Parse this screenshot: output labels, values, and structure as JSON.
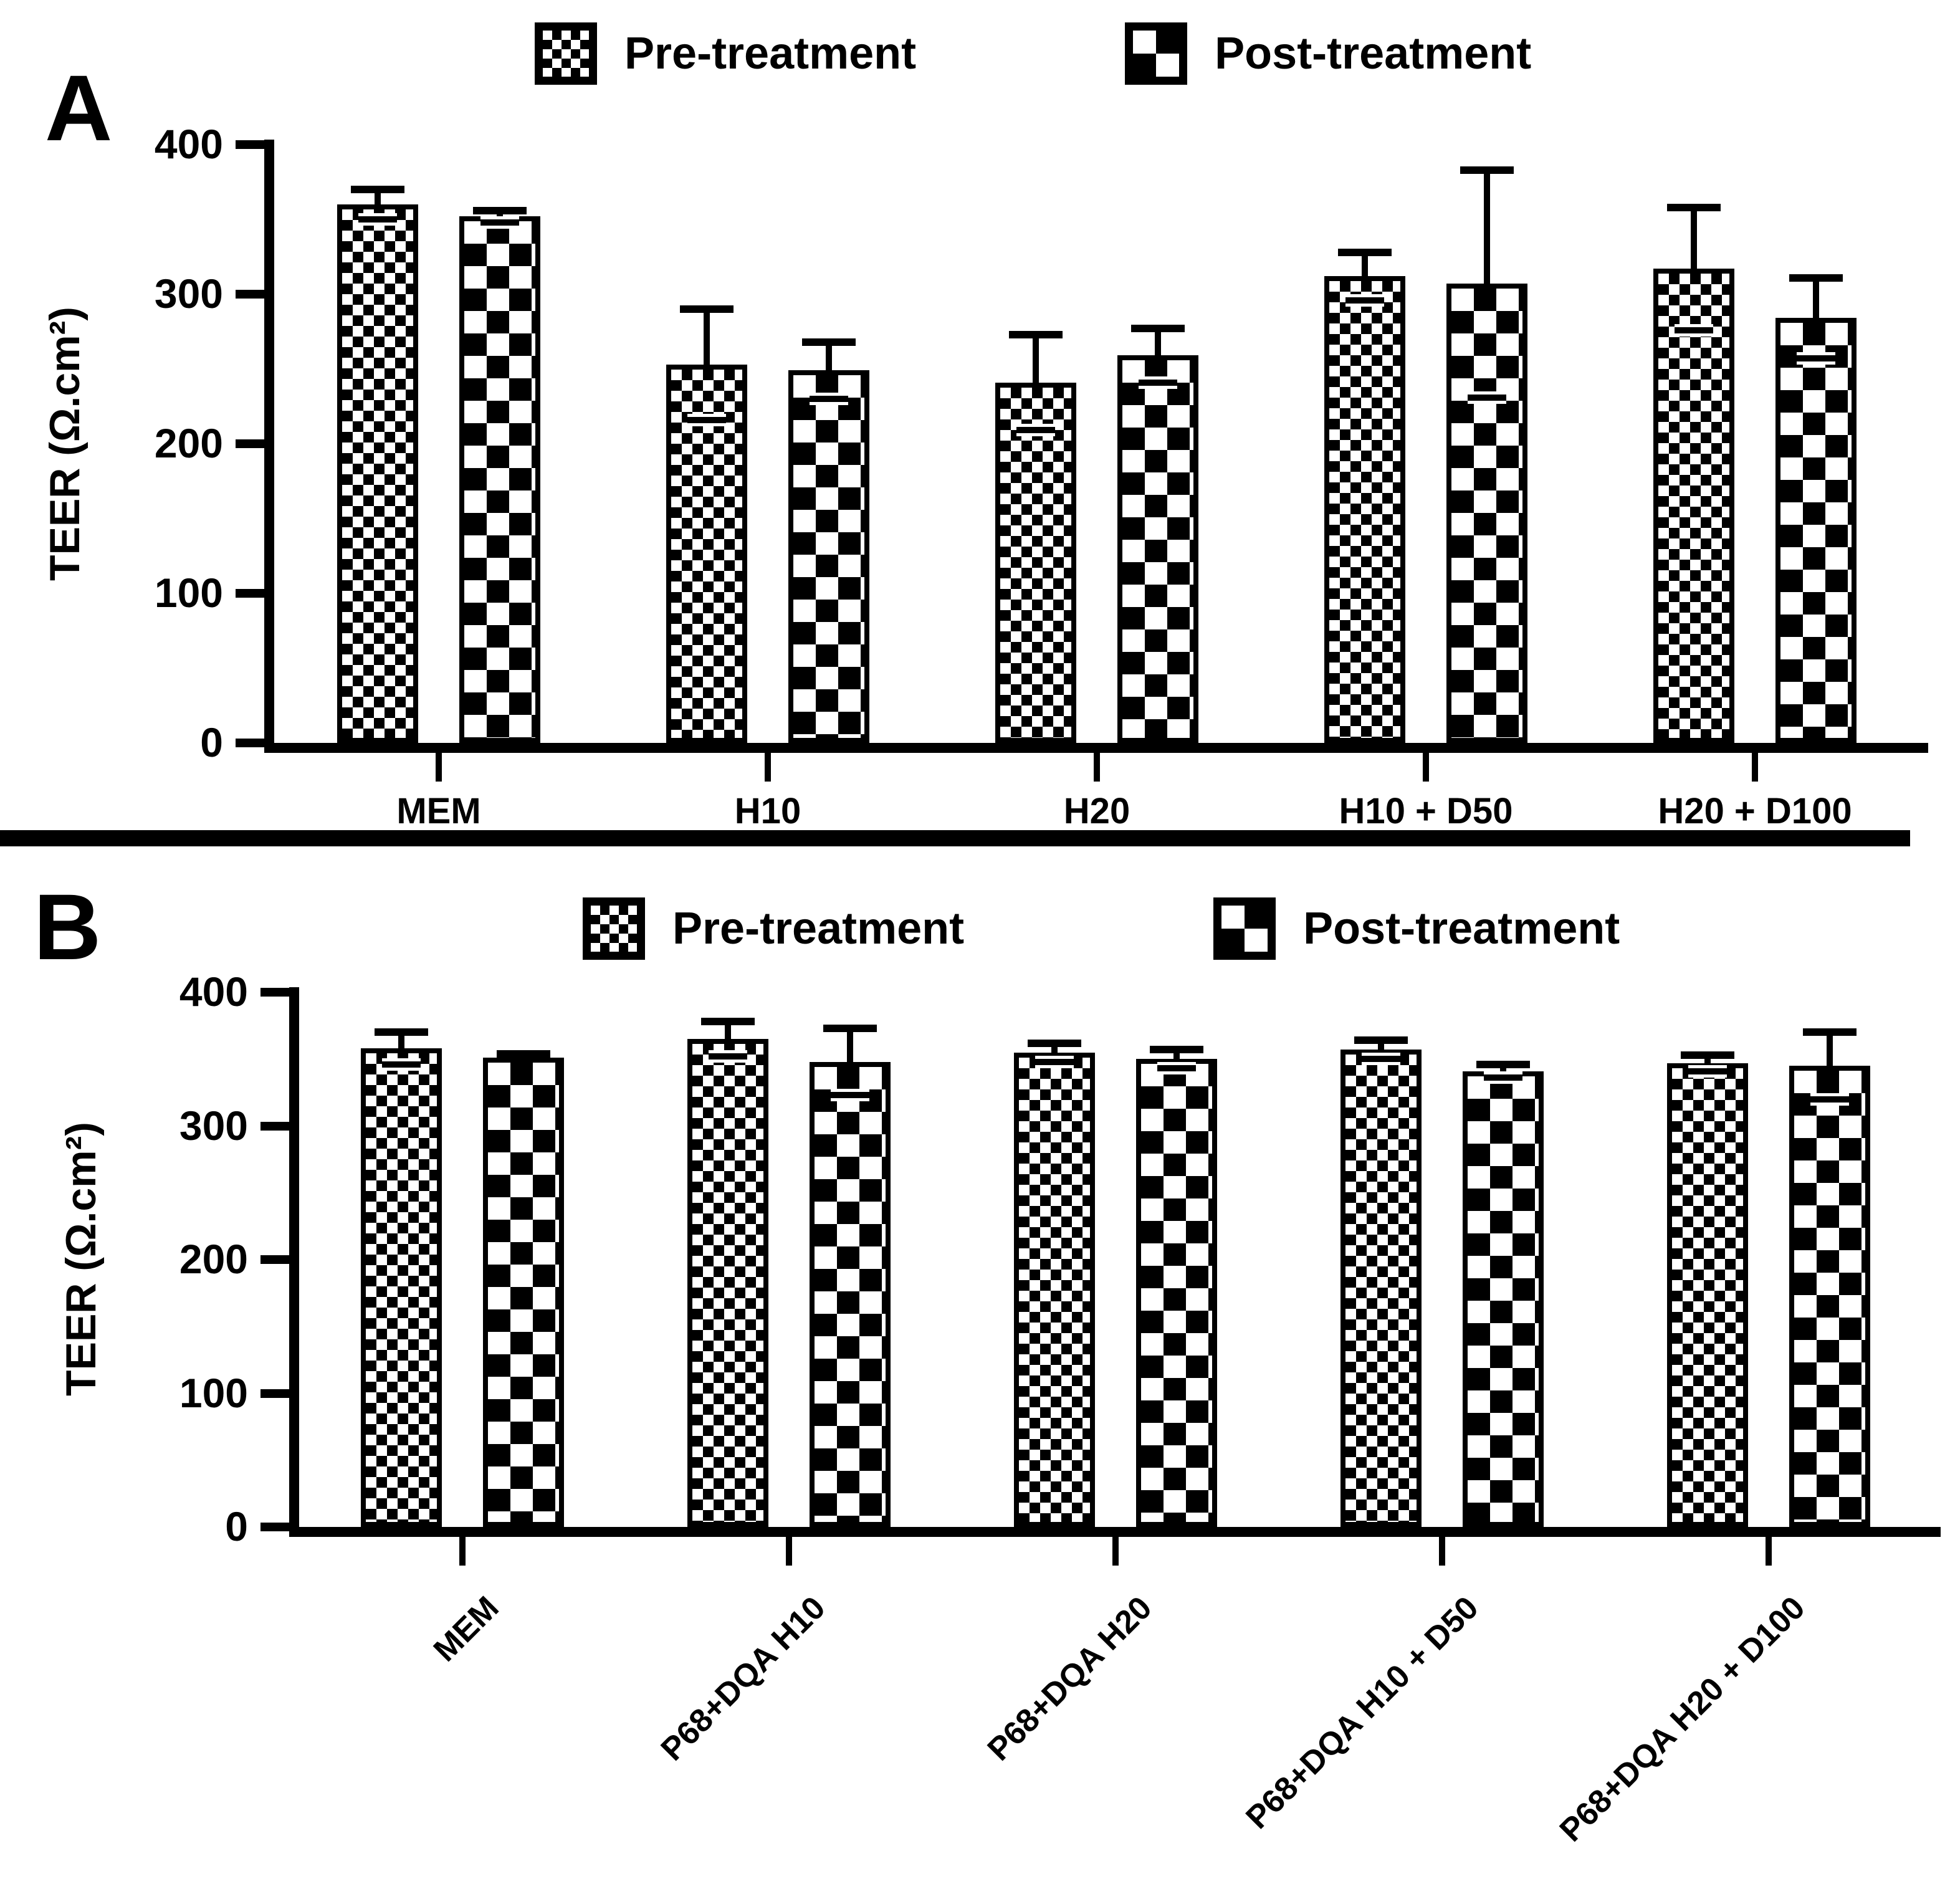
{
  "figure": {
    "background": "#ffffff",
    "ink": "#000000"
  },
  "chart_data": [
    {
      "type": "bar",
      "panel": "A",
      "ylabel": "TEER (Ω.cm²)",
      "xlabel": "",
      "ylim": [
        0,
        400
      ],
      "yticks": [
        400,
        300,
        200,
        100,
        0
      ],
      "grid": false,
      "legend_position": "top",
      "xtick_rotation": 0,
      "categories": [
        "MEM",
        "H10",
        "H20",
        "H10 + D50",
        "H20 + D100"
      ],
      "series": [
        {
          "name": "Pre-treatment",
          "pattern": "fine-checker",
          "values": [
            360,
            253,
            241,
            312,
            317
          ],
          "errors": [
            10,
            37,
            32,
            16,
            41
          ]
        },
        {
          "name": "Post-treatment",
          "pattern": "coarse-checker",
          "values": [
            352,
            249,
            259,
            307,
            284
          ],
          "errors": [
            4,
            19,
            18,
            76,
            27
          ]
        }
      ]
    },
    {
      "type": "bar",
      "panel": "B",
      "ylabel": "TEER (Ω.cm²)",
      "xlabel": "",
      "ylim": [
        0,
        400
      ],
      "yticks": [
        400,
        300,
        200,
        100,
        0
      ],
      "grid": false,
      "legend_position": "top",
      "xtick_rotation": 45,
      "categories": [
        "MEM",
        "P68+DQA H10",
        "P68+DQA H20",
        "P68+DQA H10 + D50",
        "P68+DQA H20 + D100"
      ],
      "series": [
        {
          "name": "Pre-treatment",
          "pattern": "fine-checker",
          "values": [
            358,
            365,
            355,
            357,
            347
          ],
          "errors": [
            12,
            13,
            7,
            7,
            6
          ]
        },
        {
          "name": "Post-treatment",
          "pattern": "coarse-checker",
          "values": [
            351,
            348,
            350,
            341,
            345
          ],
          "errors": [
            3,
            25,
            7,
            5,
            25
          ]
        }
      ]
    }
  ]
}
